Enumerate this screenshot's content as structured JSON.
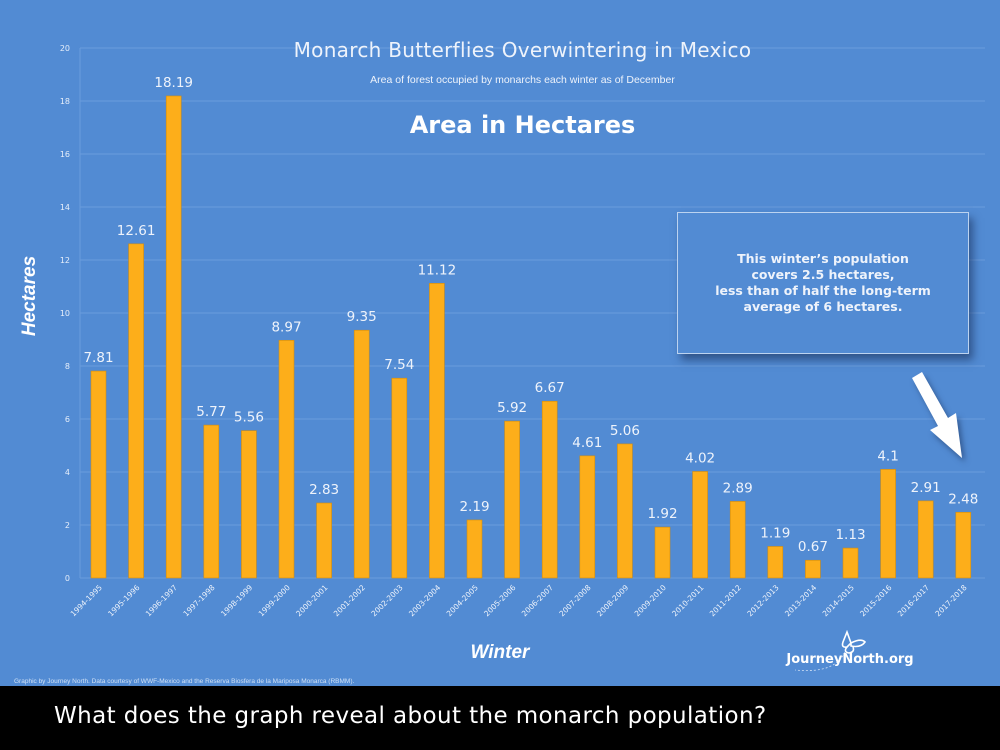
{
  "chart_data": {
    "type": "bar",
    "title": "Monarch Butterflies Overwintering in Mexico",
    "subtitle": "Area of forest occupied by monarchs each winter as of December",
    "heading": "Area in Hectares",
    "xlabel": "Winter",
    "ylabel": "Hectares",
    "ylim": [
      0,
      20
    ],
    "yticks": [
      0,
      2,
      4,
      6,
      8,
      10,
      12,
      14,
      16,
      18,
      20
    ],
    "grid": true,
    "legend": null,
    "bar_color": "#fdae1a",
    "categories": [
      "1994-1995",
      "1995-1996",
      "1996-1997",
      "1997-1998",
      "1998-1999",
      "1999-2000",
      "2000-2001",
      "2001-2002",
      "2002-2003",
      "2003-2004",
      "2004-2005",
      "2005-2006",
      "2006-2007",
      "2007-2008",
      "2008-2009",
      "2009-2010",
      "2010-2011",
      "2011-2012",
      "2012-2013",
      "2013-2014",
      "2014-2015",
      "2015-2016",
      "2016-2017",
      "2017-2018"
    ],
    "values": [
      7.81,
      12.61,
      18.19,
      5.77,
      5.56,
      8.97,
      2.83,
      9.35,
      7.54,
      11.12,
      2.19,
      5.92,
      6.67,
      4.61,
      5.06,
      1.92,
      4.02,
      2.89,
      1.19,
      0.67,
      1.13,
      4.1,
      2.91,
      2.48
    ],
    "data_labels": [
      "7.81",
      "12.61",
      "18.19",
      "5.77",
      "5.56",
      "8.97",
      "2.83",
      "9.35",
      "7.54",
      "11.12",
      "2.19",
      "5.92",
      "6.67",
      "4.61",
      "5.06",
      "1.92",
      "4.02",
      "2.89",
      "1.19",
      "0.67",
      "1.13",
      "4.1",
      "2.91",
      "2.48"
    ],
    "annotations": [
      {
        "type": "callout",
        "lines": [
          "This winter’s population",
          "covers 2.5 hectares,",
          "less than of half the long-term",
          "average of 6 hectares."
        ]
      },
      {
        "type": "arrow",
        "points_to": "2017-2018"
      }
    ]
  },
  "callout": {
    "line1": "This winter’s population",
    "line2": "covers 2.5 hectares,",
    "line3": "less than of half the long-term",
    "line4": "average of 6 hectares."
  },
  "credit": "Graphic by Journey North. Data courtesy of WWF-Mexico and the Reserva Biosfera de la Mariposa Monarca (RBMM).",
  "logo": {
    "text": "JourneyNorth.org",
    "icon": "butterfly-icon"
  },
  "caption": "What does the graph reveal about the monarch population?",
  "colors": {
    "background": "#528bd3",
    "bar": "#fdae1a",
    "text": "#eef3fb",
    "caption_bg": "#000000"
  }
}
